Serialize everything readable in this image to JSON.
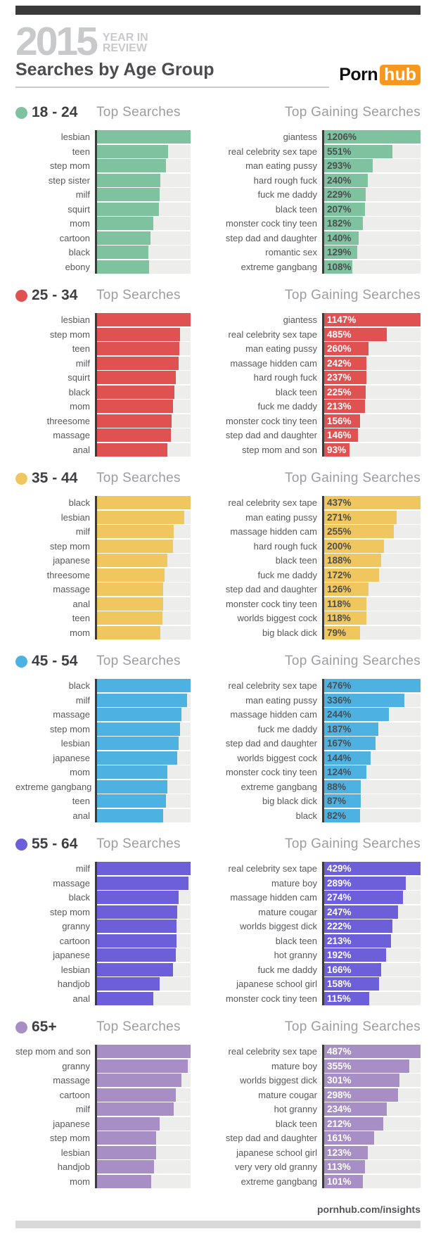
{
  "header": {
    "year": "2015",
    "year_caption_line1": "YEAR IN",
    "year_caption_line2": "REVIEW",
    "page_title": "Searches by Age Group",
    "logo": {
      "porn": "Porn",
      "hub": "hub",
      "hub_bg": "#f7971d"
    }
  },
  "titles": {
    "top": "Top Searches",
    "gaining": "Top Gaining Searches"
  },
  "footer": {
    "link": "pornhub.com/insights"
  },
  "palette": {
    "top_accent_bar": "#3a3a3a",
    "bottom_accent_bar": "#d9d9d9",
    "bar_track": "#ededeb",
    "axis_line": "#3b3b3c",
    "label_text": "#58595b",
    "section_title_text": "#9c9da0"
  },
  "groups": [
    {
      "age": "18 - 24",
      "color": "#7fc2a0",
      "pct_label_style": "dark"
    },
    {
      "age": "25 - 34",
      "color": "#e05252",
      "pct_label_style": "light"
    },
    {
      "age": "35 - 44",
      "color": "#efc75e",
      "pct_label_style": "dark"
    },
    {
      "age": "45 - 54",
      "color": "#4db1e2",
      "pct_label_style": "dark"
    },
    {
      "age": "55 - 64",
      "color": "#6c5fd9",
      "pct_label_style": "light"
    },
    {
      "age": "65+",
      "color": "#a78fc6",
      "pct_label_style": "light"
    }
  ],
  "chart_data": [
    {
      "type": "bar",
      "orientation": "horizontal",
      "group": "18 - 24",
      "title": "Top Searches",
      "unit": "relative_bar_length_pct_of_max_estimated",
      "categories": [
        "lesbian",
        "teen",
        "step mom",
        "step sister",
        "milf",
        "squirt",
        "mom",
        "cartoon",
        "black",
        "ebony"
      ],
      "values": [
        100,
        76,
        74,
        68,
        67,
        66,
        60,
        57,
        55,
        56
      ]
    },
    {
      "type": "bar",
      "orientation": "horizontal",
      "group": "18 - 24",
      "title": "Top Gaining Searches",
      "unit": "percent_gain",
      "categories": [
        "giantess",
        "real celebrity sex tape",
        "man eating pussy",
        "hard rough fuck",
        "fuck me daddy",
        "black teen",
        "monster cock tiny teen",
        "step dad and daughter",
        "romantic sex",
        "extreme gangbang"
      ],
      "values": [
        1206,
        551,
        293,
        240,
        229,
        207,
        182,
        140,
        129,
        108
      ],
      "bar_pct": [
        100,
        71,
        50,
        45,
        43,
        42,
        40,
        36,
        34,
        29
      ]
    },
    {
      "type": "bar",
      "orientation": "horizontal",
      "group": "25 - 34",
      "title": "Top Searches",
      "unit": "relative_bar_length_pct_of_max_estimated",
      "categories": [
        "lesbian",
        "step mom",
        "teen",
        "milf",
        "squirt",
        "black",
        "mom",
        "threesome",
        "massage",
        "anal"
      ],
      "values": [
        100,
        89,
        88,
        87,
        84,
        83,
        81,
        80,
        79,
        75
      ]
    },
    {
      "type": "bar",
      "orientation": "horizontal",
      "group": "25 - 34",
      "title": "Top Gaining Searches",
      "unit": "percent_gain",
      "categories": [
        "giantess",
        "real celebrity sex tape",
        "man eating pussy",
        "massage hidden cam",
        "hard rough fuck",
        "black teen",
        "fuck me daddy",
        "monster cock tiny teen",
        "step dad and daughter",
        "step mom and son"
      ],
      "values": [
        1147,
        485,
        260,
        242,
        237,
        225,
        213,
        156,
        146,
        93
      ],
      "bar_pct": [
        100,
        65,
        46,
        44,
        44,
        43,
        42,
        37,
        35,
        26
      ]
    },
    {
      "type": "bar",
      "orientation": "horizontal",
      "group": "35 - 44",
      "title": "Top Searches",
      "unit": "relative_bar_length_pct_of_max_estimated",
      "categories": [
        "black",
        "lesbian",
        "milf",
        "step mom",
        "japanese",
        "threesome",
        "massage",
        "anal",
        "teen",
        "mom"
      ],
      "values": [
        100,
        93,
        82,
        81,
        75,
        72,
        71,
        71,
        70,
        68
      ]
    },
    {
      "type": "bar",
      "orientation": "horizontal",
      "group": "35 - 44",
      "title": "Top Gaining Searches",
      "unit": "percent_gain",
      "categories": [
        "real celebrity sex tape",
        "man eating pussy",
        "massage hidden cam",
        "hard rough fuck",
        "black teen",
        "fuck me daddy",
        "step dad and daughter",
        "monster cock tiny teen",
        "worlds biggest cock",
        "big black dick"
      ],
      "values": [
        437,
        271,
        255,
        200,
        188,
        172,
        126,
        118,
        118,
        79
      ],
      "bar_pct": [
        100,
        75,
        72,
        62,
        59,
        57,
        46,
        44,
        44,
        37
      ]
    },
    {
      "type": "bar",
      "orientation": "horizontal",
      "group": "45 - 54",
      "title": "Top Searches",
      "unit": "relative_bar_length_pct_of_max_estimated",
      "categories": [
        "black",
        "milf",
        "massage",
        "step mom",
        "lesbian",
        "japanese",
        "mom",
        "extreme gangbang",
        "teen",
        "anal"
      ],
      "values": [
        100,
        96,
        90,
        89,
        87,
        86,
        75,
        75,
        74,
        71
      ]
    },
    {
      "type": "bar",
      "orientation": "horizontal",
      "group": "45 - 54",
      "title": "Top Gaining Searches",
      "unit": "percent_gain",
      "categories": [
        "real celebrity sex tape",
        "man eating pussy",
        "massage hidden cam",
        "fuck me daddy",
        "step dad and daughter",
        "worlds biggest cock",
        "monster cock tiny teen",
        "extreme gangbang",
        "big black dick",
        "black"
      ],
      "values": [
        476,
        336,
        244,
        187,
        167,
        144,
        124,
        88,
        87,
        82
      ],
      "bar_pct": [
        100,
        83,
        67,
        56,
        53,
        48,
        44,
        38,
        38,
        37
      ]
    },
    {
      "type": "bar",
      "orientation": "horizontal",
      "group": "55 - 64",
      "title": "Top Searches",
      "unit": "relative_bar_length_pct_of_max_estimated",
      "categories": [
        "milf",
        "massage",
        "black",
        "step mom",
        "granny",
        "cartoon",
        "japanese",
        "lesbian",
        "handjob",
        "anal"
      ],
      "values": [
        100,
        98,
        87,
        86,
        85,
        85,
        84,
        81,
        67,
        60
      ]
    },
    {
      "type": "bar",
      "orientation": "horizontal",
      "group": "55 - 64",
      "title": "Top Gaining Searches",
      "unit": "percent_gain",
      "categories": [
        "real celebrity sex tape",
        "mature boy",
        "massage hidden cam",
        "mature cougar",
        "worlds biggest dick",
        "black teen",
        "hot granny",
        "fuck me daddy",
        "japanese school girl",
        "monster cock tiny teen"
      ],
      "values": [
        429,
        289,
        274,
        247,
        222,
        213,
        192,
        166,
        158,
        115
      ],
      "bar_pct": [
        100,
        85,
        82,
        77,
        71,
        69,
        64,
        59,
        57,
        47
      ]
    },
    {
      "type": "bar",
      "orientation": "horizontal",
      "group": "65+",
      "title": "Top Searches",
      "unit": "relative_bar_length_pct_of_max_estimated",
      "categories": [
        "step mom and son",
        "granny",
        "massage",
        "cartoon",
        "milf",
        "japanese",
        "step mom",
        "lesbian",
        "handjob",
        "mom"
      ],
      "values": [
        100,
        97,
        90,
        84,
        82,
        67,
        63,
        63,
        61,
        58
      ]
    },
    {
      "type": "bar",
      "orientation": "horizontal",
      "group": "65+",
      "title": "Top Gaining Searches",
      "unit": "percent_gain",
      "categories": [
        "real celebrity sex tape",
        "mature boy",
        "worlds biggest dick",
        "mature cougar",
        "hot granny",
        "black teen",
        "step dad and daughter",
        "japanese school girl",
        "very very old granny",
        "extreme gangbang"
      ],
      "values": [
        487,
        355,
        301,
        298,
        234,
        212,
        161,
        123,
        113,
        101
      ],
      "bar_pct": [
        100,
        88,
        78,
        77,
        65,
        61,
        52,
        45,
        42,
        40
      ]
    }
  ]
}
